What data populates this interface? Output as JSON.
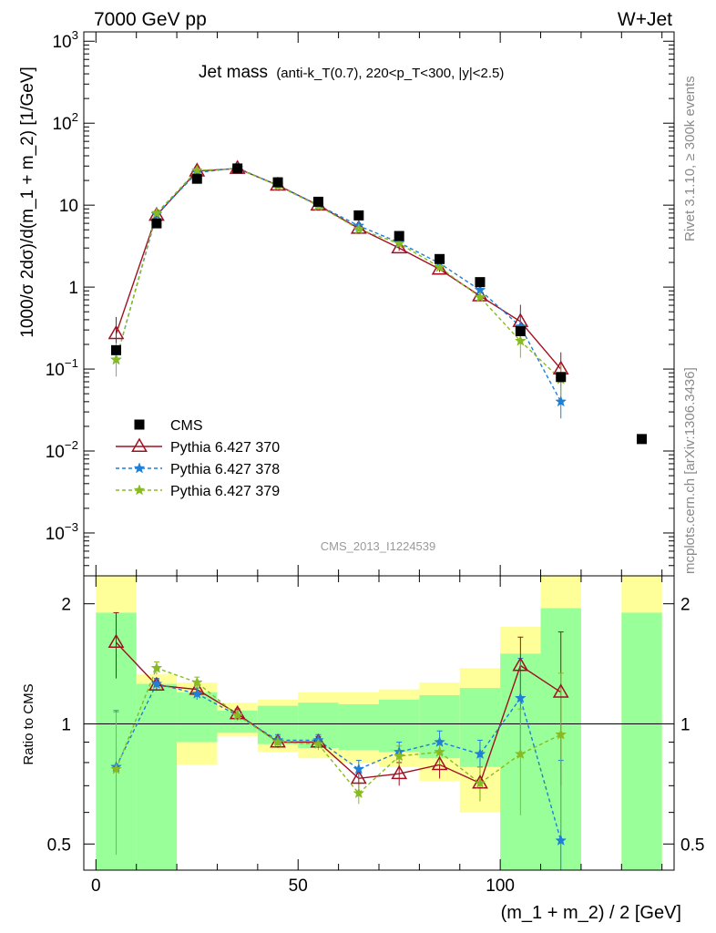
{
  "header": {
    "left": "7000 GeV pp",
    "right": "W+Jet"
  },
  "title": {
    "main": "Jet mass",
    "sub": "(anti-k_T(0.7), 220<p_T<300, |y|<2.5)"
  },
  "side_labels": {
    "rivet": "Rivet 3.1.10, ≥ 300k events",
    "mcplots": "mcplots.cern.ch [arXiv:1306.3436]"
  },
  "analysis_id": "CMS_2013_I1224539",
  "colors": {
    "cms": "#000000",
    "p370": "#a01020",
    "p378": "#1f7fd6",
    "p379": "#88bb22",
    "band_yellow": "#ffff99",
    "band_green": "#99ff99"
  },
  "chart_data": [
    {
      "type": "scatter",
      "panel": "main",
      "ylabel": "1000/σ 2dσ)/d(m_1 + m_2) [1/GeV]",
      "y_scale": "log",
      "ylim": [
        0.0003,
        1300
      ],
      "xlim": [
        -3,
        143
      ],
      "y_ticks": [
        "10^-3",
        "10^-2",
        "10^-1",
        "1",
        "10",
        "10^2",
        "10^3"
      ],
      "legend_position": "lower-left",
      "x": [
        5,
        15,
        25,
        35,
        45,
        55,
        65,
        75,
        85,
        95,
        105,
        115,
        135
      ],
      "series": [
        {
          "name": "CMS",
          "values": [
            0.17,
            6.0,
            21.0,
            28.0,
            19.0,
            11.0,
            7.5,
            4.2,
            2.2,
            1.15,
            0.29,
            0.08,
            0.014
          ]
        },
        {
          "name": "Pythia 6.427 370",
          "values": [
            0.27,
            7.5,
            26.0,
            28.0,
            17.5,
            10.0,
            5.2,
            3.0,
            1.65,
            0.78,
            0.38,
            0.1,
            null
          ]
        },
        {
          "name": "Pythia 6.427 378",
          "values": [
            0.13,
            7.7,
            25.0,
            28.5,
            17.3,
            10.0,
            5.6,
            3.5,
            1.95,
            0.92,
            0.33,
            0.04,
            null
          ]
        },
        {
          "name": "Pythia 6.427 379",
          "values": [
            0.13,
            8.0,
            26.5,
            28.0,
            17.3,
            9.8,
            5.1,
            3.4,
            1.75,
            0.75,
            0.22,
            0.075,
            null
          ]
        }
      ]
    },
    {
      "type": "line",
      "panel": "ratio",
      "ylabel": "Ratio to CMS",
      "xlabel": "(m_1 + m_2) / 2 [GeV]",
      "y_scale": "log",
      "ylim": [
        0.43,
        2.35
      ],
      "xlim": [
        -3,
        143
      ],
      "x_ticks": [
        "0",
        "50",
        "100"
      ],
      "y_ticks": [
        "0.5",
        "1",
        "2"
      ],
      "bins": [
        {
          "lo": 0,
          "hi": 10,
          "yellow": [
            0.3,
            3.0
          ],
          "green": [
            0.3,
            1.9
          ]
        },
        {
          "lo": 10,
          "hi": 20,
          "yellow": [
            0.3,
            1.33
          ],
          "green": [
            0.3,
            1.26
          ]
        },
        {
          "lo": 20,
          "hi": 30,
          "yellow": [
            0.79,
            1.27
          ],
          "green": [
            0.9,
            1.2
          ]
        },
        {
          "lo": 30,
          "hi": 40,
          "yellow": [
            0.93,
            1.13
          ],
          "green": [
            0.95,
            1.08
          ]
        },
        {
          "lo": 40,
          "hi": 50,
          "yellow": [
            0.85,
            1.15
          ],
          "green": [
            0.89,
            1.11
          ]
        },
        {
          "lo": 50,
          "hi": 60,
          "yellow": [
            0.82,
            1.2
          ],
          "green": [
            0.87,
            1.13
          ]
        },
        {
          "lo": 60,
          "hi": 70,
          "yellow": [
            0.8,
            1.2
          ],
          "green": [
            0.86,
            1.12
          ]
        },
        {
          "lo": 70,
          "hi": 80,
          "yellow": [
            0.78,
            1.22
          ],
          "green": [
            0.85,
            1.15
          ]
        },
        {
          "lo": 80,
          "hi": 90,
          "yellow": [
            0.72,
            1.27
          ],
          "green": [
            0.82,
            1.18
          ]
        },
        {
          "lo": 90,
          "hi": 100,
          "yellow": [
            0.6,
            1.38
          ],
          "green": [
            0.78,
            1.23
          ]
        },
        {
          "lo": 100,
          "hi": 110,
          "yellow": [
            0.3,
            1.75
          ],
          "green": [
            0.3,
            1.5
          ]
        },
        {
          "lo": 110,
          "hi": 120,
          "yellow": [
            0.3,
            3.0
          ],
          "green": [
            0.3,
            1.95
          ]
        },
        {
          "lo": 130,
          "hi": 140,
          "yellow": [
            0.3,
            3.0
          ],
          "green": [
            0.3,
            1.9
          ]
        }
      ],
      "x": [
        5,
        15,
        25,
        35,
        45,
        55,
        65,
        75,
        85,
        95,
        105,
        115
      ],
      "series": [
        {
          "name": "Pythia 6.427 370",
          "values": [
            1.6,
            1.25,
            1.22,
            1.06,
            0.9,
            0.9,
            0.73,
            0.75,
            0.79,
            0.71,
            1.4,
            1.2
          ],
          "err": [
            0.3,
            0.04,
            0.04,
            0.03,
            0.03,
            0.03,
            0.04,
            0.05,
            0.06,
            0.07,
            0.25,
            0.5
          ]
        },
        {
          "name": "Pythia 6.427 378",
          "values": [
            0.78,
            1.26,
            1.19,
            1.05,
            0.91,
            0.91,
            0.77,
            0.85,
            0.9,
            0.84,
            1.16,
            0.51
          ],
          "err": [
            0.3,
            0.04,
            0.04,
            0.03,
            0.03,
            0.03,
            0.04,
            0.05,
            0.06,
            0.07,
            0.3,
            0.3
          ]
        },
        {
          "name": "Pythia 6.427 379",
          "values": [
            0.77,
            1.38,
            1.27,
            1.05,
            0.9,
            0.89,
            0.67,
            0.83,
            0.85,
            0.71,
            0.84,
            0.94
          ],
          "err": [
            0.3,
            0.05,
            0.04,
            0.03,
            0.03,
            0.03,
            0.04,
            0.05,
            0.06,
            0.07,
            0.25,
            0.4
          ]
        }
      ]
    }
  ]
}
